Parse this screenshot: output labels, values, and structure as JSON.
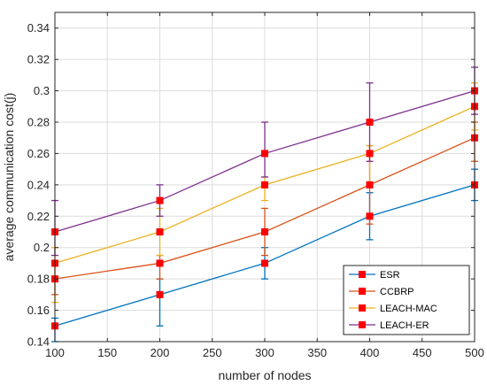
{
  "chart_data": {
    "type": "line",
    "xlabel": "number of nodes",
    "ylabel": "average communication cost(j)",
    "x": [
      100,
      200,
      300,
      400,
      500
    ],
    "xlim": [
      100,
      500
    ],
    "ylim": [
      0.14,
      0.35
    ],
    "xticks": [
      100,
      150,
      200,
      250,
      300,
      350,
      400,
      450,
      500
    ],
    "yticks": [
      0.14,
      0.16,
      0.18,
      0.2,
      0.22,
      0.24,
      0.26,
      0.28,
      0.3,
      0.32,
      0.34
    ],
    "xtick_labels": [
      "100",
      "150",
      "200",
      "250",
      "300",
      "350",
      "400",
      "450",
      "500"
    ],
    "ytick_labels": [
      "0.14",
      "0.16",
      "0.18",
      "0.2",
      "0.22",
      "0.24",
      "0.26",
      "0.28",
      "0.3",
      "0.32",
      "0.34"
    ],
    "grid": true,
    "legend_position": "bottom-right",
    "marker": "square",
    "marker_color": "#ff0000",
    "series": [
      {
        "name": "ESR",
        "color": "#0072bd",
        "values": [
          0.15,
          0.17,
          0.19,
          0.22,
          0.24
        ],
        "err_low": [
          0.14,
          0.15,
          0.18,
          0.205,
          0.23
        ],
        "err_high": [
          0.155,
          0.18,
          0.2,
          0.235,
          0.25
        ]
      },
      {
        "name": "CCBRP",
        "color": "#d95319",
        "values": [
          0.18,
          0.19,
          0.21,
          0.24,
          0.27
        ],
        "err_low": [
          0.17,
          0.18,
          0.195,
          0.215,
          0.255
        ],
        "err_high": [
          0.19,
          0.195,
          0.225,
          0.265,
          0.28
        ]
      },
      {
        "name": "LEACH-MAC",
        "color": "#edb120",
        "values": [
          0.19,
          0.21,
          0.24,
          0.26,
          0.29
        ],
        "err_low": [
          0.165,
          0.195,
          0.23,
          0.24,
          0.275
        ],
        "err_high": [
          0.2,
          0.225,
          0.245,
          0.265,
          0.305
        ]
      },
      {
        "name": "LEACH-ER",
        "color": "#7e2f8e",
        "values": [
          0.21,
          0.23,
          0.26,
          0.28,
          0.3
        ],
        "err_low": [
          0.195,
          0.22,
          0.245,
          0.255,
          0.285
        ],
        "err_high": [
          0.23,
          0.24,
          0.28,
          0.305,
          0.315
        ]
      }
    ]
  }
}
